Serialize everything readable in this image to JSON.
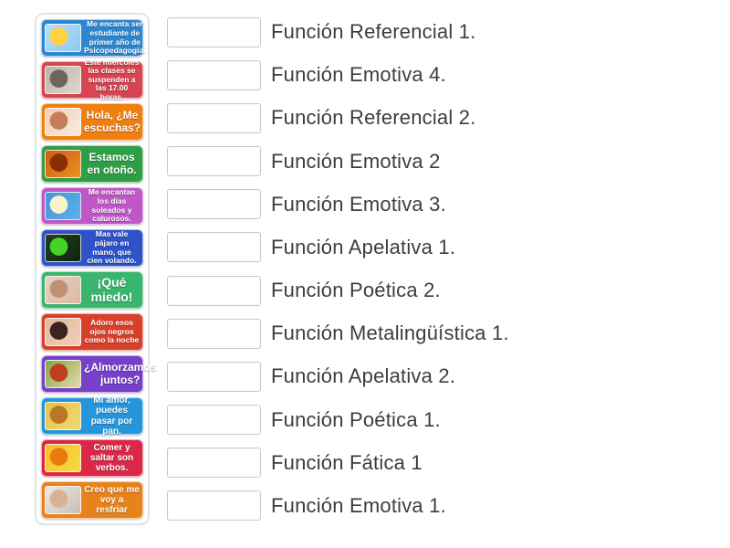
{
  "activity": {
    "type": "match-up"
  },
  "colors": {
    "page_bg": "#ffffff",
    "panel_border": "#dde4ec",
    "box_border": "#c6cacd",
    "label_text": "#3d3d40",
    "card_text": "#ffffff"
  },
  "cards": [
    {
      "text": "Me encanta ser estudiante de primer año de Psicopedagogía.",
      "color": "#2e86d0",
      "image": "sun-character-photo",
      "image_colors": [
        "#b8e0f8",
        "#ffd23e",
        "#8ec9ef"
      ]
    },
    {
      "text": "Este miércoles las clases se suspenden a las 17.00 horas.",
      "color": "#d64550",
      "image": "classroom-photo",
      "image_colors": [
        "#b8b2a8",
        "#6e645a",
        "#ded8d0"
      ]
    },
    {
      "text": "Hola, ¿Me escuchas?",
      "color": "#ef7f10",
      "image": "woman-listening-photo",
      "image_colors": [
        "#f2cdb4",
        "#c87d5a",
        "#f8ece2"
      ]
    },
    {
      "text": "Estamos en otoño.",
      "color": "#2f9e48",
      "image": "autumn-leaves-photo",
      "image_colors": [
        "#d25a12",
        "#8a2e06",
        "#e8921f"
      ]
    },
    {
      "text": "Me encantan los días soleados y calurosos.",
      "color": "#bf57c6",
      "image": "sunny-day-child-photo",
      "image_colors": [
        "#3f97dd",
        "#f8f4c8",
        "#62aee8"
      ]
    },
    {
      "text": "Mas vale pájaro en mano, que cien volando.",
      "color": "#2e52c8",
      "image": "green-bird-photo",
      "image_colors": [
        "#23421c",
        "#45d426",
        "#0d2410"
      ]
    },
    {
      "text": "¡Qué miedo!",
      "color": "#3ab56e",
      "image": "scared-baby-meme-photo",
      "image_colors": [
        "#e8d2c4",
        "#c09070",
        "#d8b8a4"
      ]
    },
    {
      "text": "Adoro esos ojos negros como la noche",
      "color": "#d8402a",
      "image": "baby-dark-eyes-photo",
      "image_colors": [
        "#e2b89e",
        "#3a2420",
        "#f0d0b8"
      ]
    },
    {
      "text": "¿Almorzamos juntos?",
      "color": "#7640c8",
      "image": "lunch-plate-photo",
      "image_colors": [
        "#7da83f",
        "#c23c20",
        "#e8d8b0"
      ]
    },
    {
      "text": "Mi amor, puedes pasar por pan.",
      "color": "#2596dc",
      "image": "bread-basket-photo",
      "image_colors": [
        "#e8c23e",
        "#b87828",
        "#f0d878"
      ]
    },
    {
      "text": "Comer y saltar son verbos.",
      "color": "#dc2848",
      "image": "jumping-figure-photo",
      "image_colors": [
        "#f5c020",
        "#e87b10",
        "#fada4a"
      ]
    },
    {
      "text": "Creo que me voy a resfriar",
      "color": "#e8821a",
      "image": "person-sneezing-photo",
      "image_colors": [
        "#efe9e4",
        "#d8b294",
        "#c8beb6"
      ]
    }
  ],
  "answers": [
    {
      "label": "Función Referencial 1."
    },
    {
      "label": "Función Emotiva 4."
    },
    {
      "label": "Función Referencial 2."
    },
    {
      "label": "Función Emotiva 2"
    },
    {
      "label": "Función Emotiva 3."
    },
    {
      "label": "Función Apelativa 1."
    },
    {
      "label": "Función Poética 2."
    },
    {
      "label": "Función Metalingüística 1."
    },
    {
      "label": "Función Apelativa 2."
    },
    {
      "label": "Función Poética 1."
    },
    {
      "label": "Función Fática 1"
    },
    {
      "label": "Función Emotiva 1."
    }
  ]
}
